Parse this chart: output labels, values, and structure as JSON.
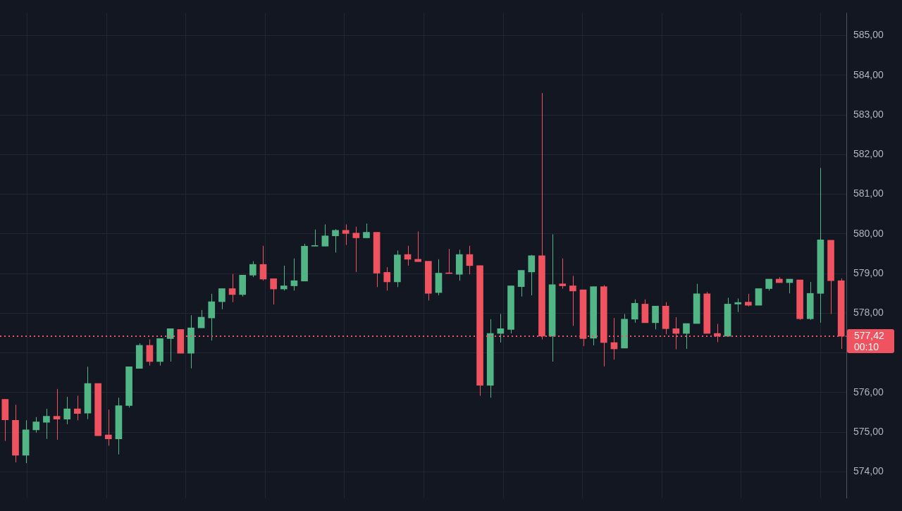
{
  "chart_data": {
    "type": "candlestick",
    "categories": [
      null,
      null,
      null,
      null,
      null,
      null,
      null,
      null,
      null,
      null,
      null,
      null,
      null,
      null,
      null,
      null,
      null,
      null,
      null,
      null,
      null,
      null,
      null,
      null,
      null,
      null,
      null,
      null,
      null,
      null,
      null,
      null,
      null,
      null,
      null,
      null,
      null,
      null,
      null,
      null,
      null,
      null,
      null,
      null,
      null,
      null,
      null,
      null,
      null,
      null,
      null,
      null,
      null,
      null,
      null,
      null,
      null,
      null,
      null,
      null,
      null,
      null,
      null,
      null,
      null,
      null,
      null,
      null,
      null,
      null,
      null,
      null,
      null,
      null,
      null,
      null,
      null,
      null,
      null,
      null,
      null,
      null
    ],
    "ohlc": [
      [
        575.83,
        575.83,
        574.78,
        575.31
      ],
      [
        575.3,
        575.69,
        574.24,
        574.42
      ],
      [
        574.42,
        575.3,
        574.22,
        575.06
      ],
      [
        575.06,
        575.38,
        574.99,
        575.26
      ],
      [
        575.25,
        575.59,
        574.83,
        575.4
      ],
      [
        575.4,
        576.09,
        574.81,
        575.33
      ],
      [
        575.33,
        575.89,
        575.2,
        575.59
      ],
      [
        575.59,
        575.92,
        575.3,
        575.47
      ],
      [
        575.48,
        576.65,
        575.33,
        576.23
      ],
      [
        576.23,
        576.23,
        574.91,
        574.91
      ],
      [
        574.93,
        575.57,
        574.66,
        574.83
      ],
      [
        574.83,
        575.87,
        574.44,
        575.67
      ],
      [
        575.67,
        576.65,
        575.62,
        576.65
      ],
      [
        576.61,
        577.24,
        576.61,
        577.19
      ],
      [
        577.19,
        577.34,
        576.68,
        576.78
      ],
      [
        576.78,
        577.36,
        576.68,
        577.36
      ],
      [
        577.36,
        577.61,
        576.78,
        577.61
      ],
      [
        577.59,
        577.59,
        576.99,
        576.99
      ],
      [
        576.99,
        577.95,
        576.61,
        577.63
      ],
      [
        577.63,
        578.08,
        577.63,
        577.9
      ],
      [
        577.88,
        578.49,
        577.31,
        578.29
      ],
      [
        578.29,
        578.62,
        578.1,
        578.62
      ],
      [
        578.62,
        578.99,
        578.28,
        578.47
      ],
      [
        578.47,
        578.96,
        578.42,
        578.96
      ],
      [
        578.96,
        579.31,
        578.91,
        579.23
      ],
      [
        579.23,
        579.7,
        578.82,
        578.86
      ],
      [
        578.87,
        578.87,
        578.22,
        578.61
      ],
      [
        578.61,
        579.2,
        578.57,
        578.69
      ],
      [
        578.69,
        579.38,
        578.57,
        578.82
      ],
      [
        578.81,
        579.75,
        578.81,
        579.69
      ],
      [
        579.69,
        580.11,
        579.69,
        579.7
      ],
      [
        579.69,
        580.24,
        579.69,
        579.95
      ],
      [
        579.95,
        580.12,
        579.53,
        580.09
      ],
      [
        580.09,
        580.24,
        579.72,
        580.01
      ],
      [
        580.02,
        580.18,
        579.04,
        579.9
      ],
      [
        579.9,
        580.26,
        579.9,
        580.04
      ],
      [
        580.04,
        580.04,
        578.66,
        579.01
      ],
      [
        579.03,
        579.16,
        578.57,
        578.79
      ],
      [
        578.79,
        579.58,
        578.66,
        579.47
      ],
      [
        579.48,
        579.7,
        579.2,
        579.36
      ],
      [
        579.36,
        580.06,
        579.3,
        579.3
      ],
      [
        579.31,
        579.31,
        578.32,
        578.5
      ],
      [
        578.52,
        579.36,
        578.45,
        579.01
      ],
      [
        579.01,
        579.62,
        579.0,
        579.0
      ],
      [
        578.98,
        579.6,
        578.82,
        579.48
      ],
      [
        579.48,
        579.7,
        578.98,
        579.2
      ],
      [
        579.2,
        579.2,
        575.92,
        576.18
      ],
      [
        576.18,
        577.85,
        575.87,
        577.49
      ],
      [
        577.49,
        577.98,
        577.26,
        577.61
      ],
      [
        577.59,
        578.69,
        577.49,
        578.69
      ],
      [
        578.67,
        579.08,
        578.42,
        579.08
      ],
      [
        579.04,
        579.47,
        578.45,
        579.45
      ],
      [
        579.45,
        583.55,
        577.34,
        577.42
      ],
      [
        577.42,
        579.99,
        576.78,
        578.72
      ],
      [
        578.74,
        579.38,
        578.62,
        578.69
      ],
      [
        578.69,
        578.94,
        577.68,
        578.56
      ],
      [
        578.59,
        578.59,
        577.17,
        577.36
      ],
      [
        577.37,
        578.67,
        577.19,
        578.67
      ],
      [
        578.67,
        578.71,
        576.66,
        577.26
      ],
      [
        577.26,
        577.88,
        576.83,
        577.1
      ],
      [
        577.12,
        577.98,
        577.12,
        577.85
      ],
      [
        577.85,
        578.35,
        577.76,
        578.25
      ],
      [
        578.23,
        578.35,
        577.76,
        577.76
      ],
      [
        577.76,
        578.18,
        577.59,
        578.18
      ],
      [
        578.18,
        578.28,
        577.47,
        577.61
      ],
      [
        577.61,
        577.9,
        577.09,
        577.49
      ],
      [
        577.49,
        577.74,
        577.1,
        577.74
      ],
      [
        577.74,
        578.74,
        577.74,
        578.49
      ],
      [
        578.49,
        578.54,
        577.49,
        577.49
      ],
      [
        577.49,
        577.73,
        577.27,
        577.42
      ],
      [
        577.42,
        578.39,
        577.42,
        578.23
      ],
      [
        578.23,
        578.37,
        578.03,
        578.27
      ],
      [
        578.28,
        578.49,
        578.17,
        578.2
      ],
      [
        578.2,
        578.62,
        578.2,
        578.62
      ],
      [
        578.62,
        578.86,
        578.57,
        578.86
      ],
      [
        578.86,
        578.91,
        578.77,
        578.77
      ],
      [
        578.77,
        578.86,
        578.5,
        578.86
      ],
      [
        578.84,
        578.84,
        577.83,
        577.86
      ],
      [
        577.86,
        578.79,
        577.83,
        578.5
      ],
      [
        578.5,
        581.66,
        577.76,
        579.85
      ],
      [
        579.84,
        579.84,
        577.98,
        578.82
      ],
      [
        578.82,
        578.88,
        577.1,
        577.42
      ]
    ],
    "colors": [
      "#ef5360",
      "#ef5360",
      "#51b586",
      "#51b586",
      "#51b586",
      "#ef5360",
      "#51b586",
      "#ef5360",
      "#51b586",
      "#ef5360",
      "#ef5360",
      "#51b586",
      "#51b586",
      "#51b586",
      "#ef5360",
      "#51b586",
      "#51b586",
      "#ef5360",
      "#51b586",
      "#51b586",
      "#51b586",
      "#51b586",
      "#ef5360",
      "#51b586",
      "#51b586",
      "#ef5360",
      "#ef5360",
      "#51b586",
      "#51b586",
      "#51b586",
      "#51b586",
      "#51b586",
      "#51b586",
      "#ef5360",
      "#ef5360",
      "#51b586",
      "#ef5360",
      "#ef5360",
      "#51b586",
      "#ef5360",
      "#ef5360",
      "#ef5360",
      "#51b586",
      "#ef5360",
      "#51b586",
      "#ef5360",
      "#ef5360",
      "#51b586",
      "#51b586",
      "#51b586",
      "#51b586",
      "#51b586",
      "#ef5360",
      "#51b586",
      "#ef5360",
      "#ef5360",
      "#ef5360",
      "#51b586",
      "#ef5360",
      "#ef5360",
      "#51b586",
      "#51b586",
      "#ef5360",
      "#51b586",
      "#ef5360",
      "#ef5360",
      "#51b586",
      "#51b586",
      "#ef5360",
      "#ef5360",
      "#51b586",
      "#51b586",
      "#ef5360",
      "#51b586",
      "#51b586",
      "#ef5360",
      "#51b586",
      "#ef5360",
      "#51b586",
      "#51b586",
      "#ef5360",
      "#ef5360"
    ],
    "ylim": [
      573.34,
      585.57
    ],
    "yticks": [
      {
        "value": 574,
        "label": "574,00"
      },
      {
        "value": 575,
        "label": "575,00"
      },
      {
        "value": 576,
        "label": "576,00"
      },
      {
        "value": 577,
        "label": null
      },
      {
        "value": 578,
        "label": "578,00"
      },
      {
        "value": 579,
        "label": "579,00"
      },
      {
        "value": 580,
        "label": "580,00"
      },
      {
        "value": 581,
        "label": "581,00"
      },
      {
        "value": 582,
        "label": "582,00"
      },
      {
        "value": 583,
        "label": "583,00"
      },
      {
        "value": 584,
        "label": "584,00"
      },
      {
        "value": 585,
        "label": "585,00"
      }
    ],
    "ref_lines": [
      {
        "axis": "y",
        "value": 577.42,
        "label": "577,42",
        "color": "#ef5360",
        "line_style": "dotted"
      }
    ],
    "annotations": [
      "00:10"
    ],
    "grid": true,
    "legend": false,
    "tick_labels": "y"
  }
}
